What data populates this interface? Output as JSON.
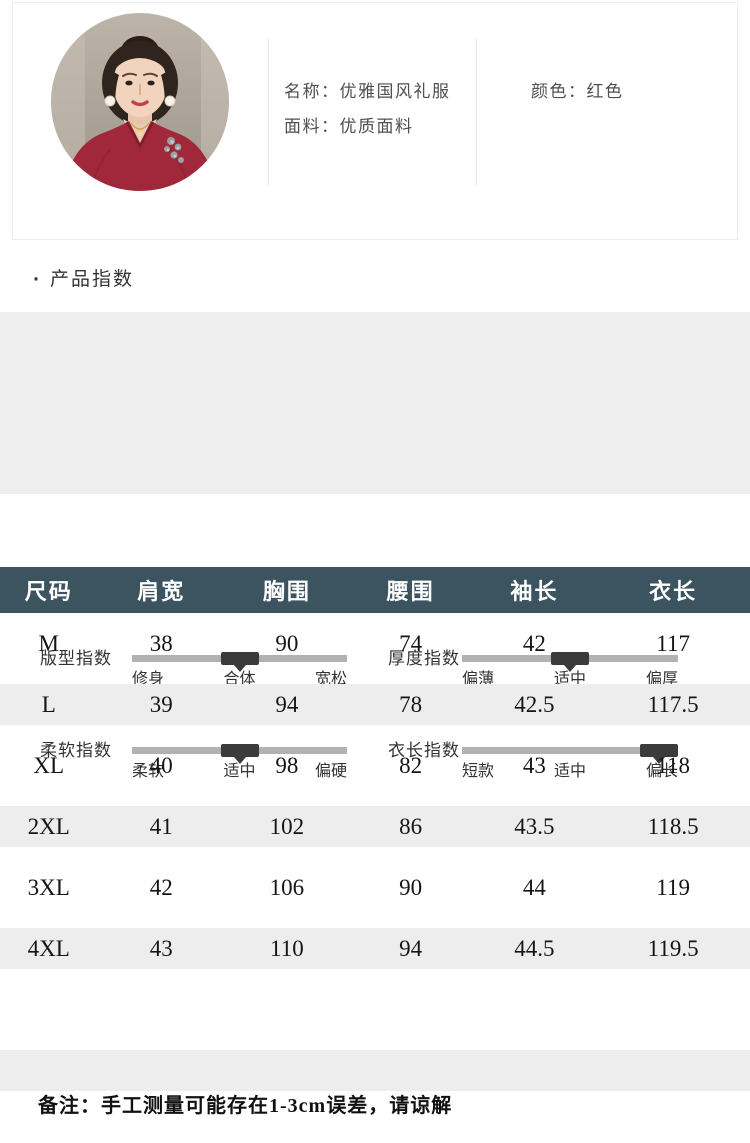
{
  "product_card": {
    "photo_alt": "model wearing red chinese-style dress",
    "name": {
      "label": "名称：",
      "value": "优雅国风礼服"
    },
    "fabric": {
      "label": "面料：",
      "value": "优质面料"
    },
    "color": {
      "label": "颜色：",
      "value": "红色"
    }
  },
  "section": {
    "bullet": "·",
    "title": "产品指数"
  },
  "indices": {
    "items": [
      {
        "name": "版型指数",
        "levels": [
          "修身",
          "合体",
          "宽松"
        ],
        "selected": "合体",
        "position": "middle"
      },
      {
        "name": "厚度指数",
        "levels": [
          "偏薄",
          "适中",
          "偏厚"
        ],
        "selected": "适中",
        "position": "middle"
      },
      {
        "name": "柔软指数",
        "levels": [
          "柔软",
          "适中",
          "偏硬"
        ],
        "selected": "适中",
        "position": "middle"
      },
      {
        "name": "衣长指数",
        "levels": [
          "短款",
          "适中",
          "偏长"
        ],
        "selected": "偏长",
        "position": "right"
      }
    ]
  },
  "size_table": {
    "headers": [
      "尺码",
      "肩宽",
      "胸围",
      "腰围",
      "袖长",
      "衣长"
    ],
    "rows": [
      [
        "M",
        "38",
        "90",
        "74",
        "42",
        "117"
      ],
      [
        "L",
        "39",
        "94",
        "78",
        "42.5",
        "117.5"
      ],
      [
        "XL",
        "40",
        "98",
        "82",
        "43",
        "118"
      ],
      [
        "2XL",
        "41",
        "102",
        "86",
        "43.5",
        "118.5"
      ],
      [
        "3XL",
        "42",
        "106",
        "90",
        "44",
        "119"
      ],
      [
        "4XL",
        "43",
        "110",
        "94",
        "44.5",
        "119.5"
      ]
    ]
  },
  "note": "备注：手工测量可能存在1-3cm误差，请谅解",
  "colors": {
    "table_header_bg": "#3c5360",
    "row_stripe": "#ededed",
    "panel_bg": "#efefef",
    "slider_bar": "#b2b2b2",
    "slider_marker": "#3b3b3b",
    "dress_red": "#a0283a"
  }
}
